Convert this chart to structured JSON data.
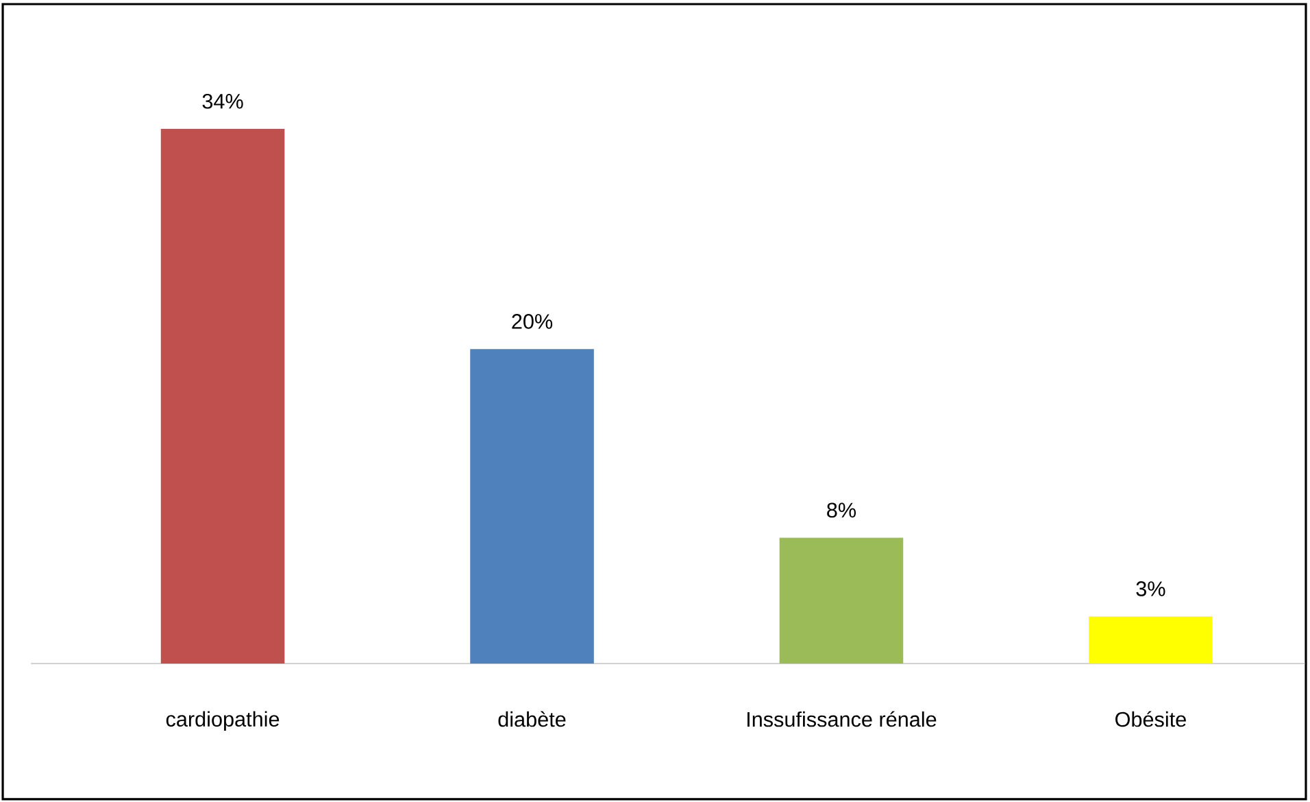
{
  "chart_data": {
    "type": "bar",
    "categories": [
      "cardiopathie",
      "diabète",
      "Inssufissance rénale",
      "Obésite"
    ],
    "values": [
      34,
      20,
      8,
      3
    ],
    "colors": [
      "#c0504d",
      "#4f81bd",
      "#9bbb59",
      "#ffff00"
    ],
    "value_labels": [
      "34%",
      "20%",
      "8%",
      "3%"
    ]
  }
}
